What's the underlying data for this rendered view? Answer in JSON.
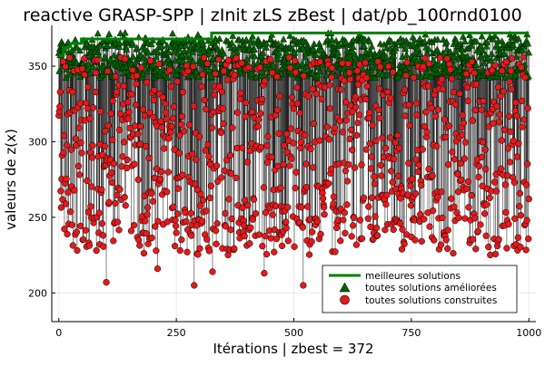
{
  "chart_data": {
    "type": "scatter",
    "title": "reactive GRASP-SPP | zInit zLS zBest | dat/pb_100rnd0100",
    "xlabel": "Itérations | zbest = 372",
    "ylabel": "valeurs de z(x)",
    "xlim": [
      -15,
      1015
    ],
    "ylim": [
      181,
      377
    ],
    "xticks": [
      0,
      250,
      500,
      750,
      1000
    ],
    "yticks": [
      200,
      250,
      300,
      350
    ],
    "grid": true,
    "legend_position": "bottom-right",
    "n_iterations": 1000,
    "series": [
      {
        "name": "meilleures solutions",
        "kind": "step-line",
        "color": "#008000",
        "x": [
          0,
          10,
          20,
          25,
          48,
          325,
          1000
        ],
        "y": [
          357,
          362,
          363,
          365,
          368,
          372,
          372
        ]
      },
      {
        "name": "toutes solutions améliorées",
        "kind": "markers-triangle",
        "color": "#006400",
        "approx_range": [
          340,
          372
        ]
      },
      {
        "name": "toutes solutions construites",
        "kind": "markers-circle",
        "color": "#e31a1c",
        "approx_range": [
          186,
          356
        ],
        "lowest_points": [
          {
            "x": 437,
            "y": 186
          },
          {
            "x": 101,
            "y": 198
          },
          {
            "x": 288,
            "y": 205
          },
          {
            "x": 520,
            "y": 205
          },
          {
            "x": 101,
            "y": 207
          },
          {
            "x": 437,
            "y": 213
          },
          {
            "x": 327,
            "y": 214
          },
          {
            "x": 210,
            "y": 216
          },
          {
            "x": 80,
            "y": 228
          }
        ]
      }
    ]
  }
}
